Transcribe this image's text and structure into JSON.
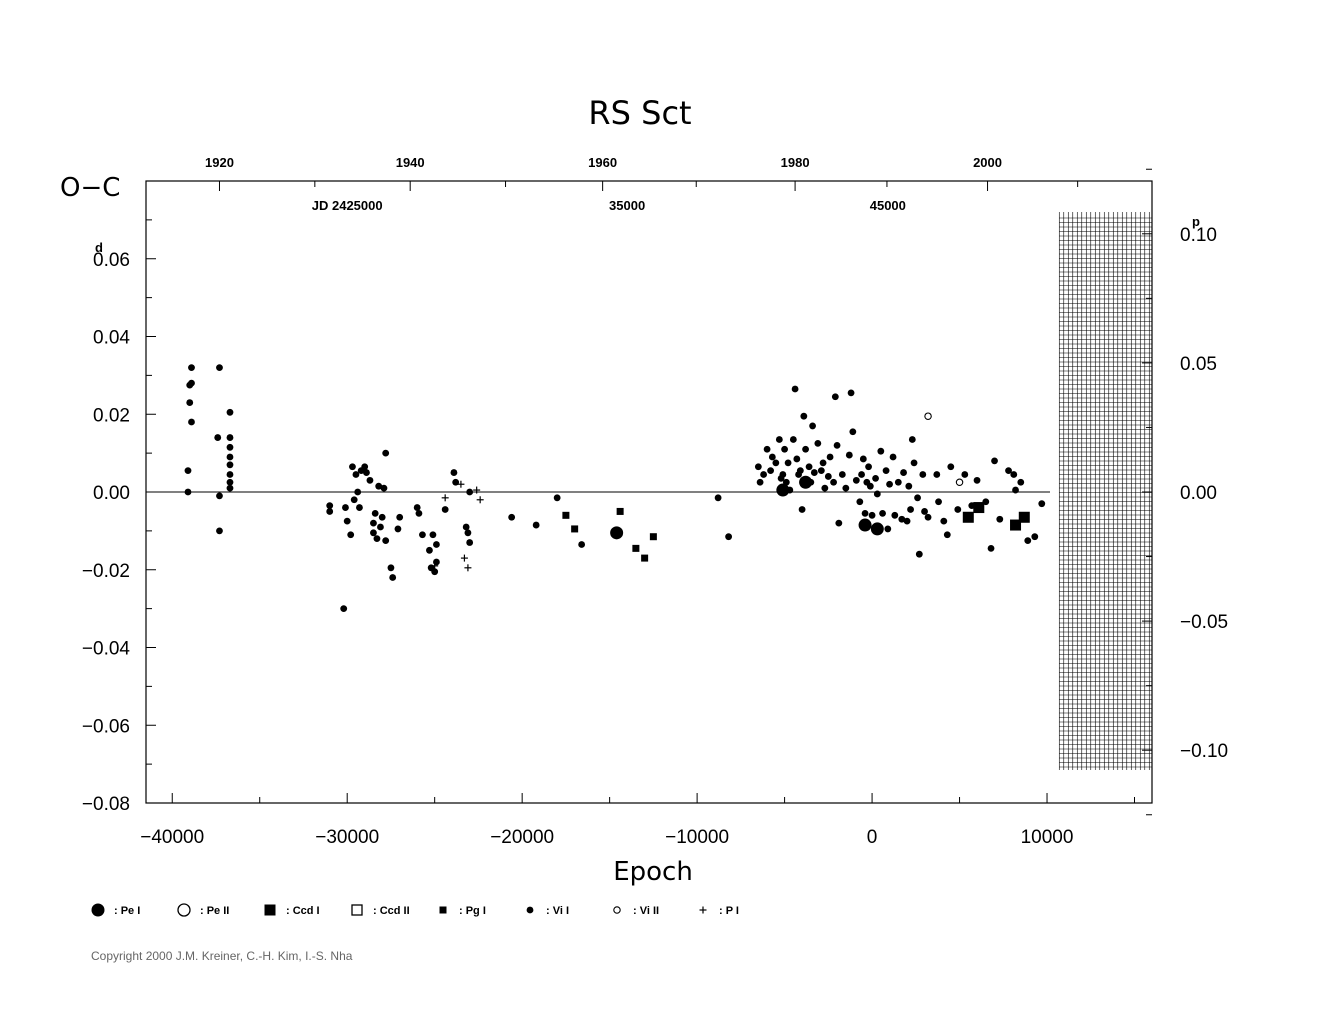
{
  "chart_data": {
    "type": "scatter",
    "title": "RS  Sct",
    "ylabel": "O−C",
    "ylabel_unit": "d",
    "xlabel": "Epoch",
    "xlim": [
      -41500,
      16000
    ],
    "ylim": [
      -0.08,
      0.08
    ],
    "x_ticks": [
      -40000,
      -30000,
      -20000,
      -10000,
      0,
      10000
    ],
    "x_tick_labels": [
      "−40000",
      "−30000",
      "−20000",
      "−10000",
      "0",
      "10000"
    ],
    "y_ticks": [
      -0.08,
      -0.06,
      -0.04,
      -0.02,
      0.0,
      0.02,
      0.04,
      0.06
    ],
    "y_tick_labels": [
      "−0.08",
      "−0.06",
      "−0.04",
      "−0.02",
      "0.00",
      "0.02",
      "0.04",
      "0.06"
    ],
    "right_axis": {
      "unit": "p",
      "ticks": [
        -0.1,
        -0.05,
        0.0,
        0.05,
        0.1
      ],
      "tick_labels": [
        "−0.10",
        "−0.05",
        "0.00",
        "0.05",
        "0.10"
      ],
      "period_days": 0.6642
    },
    "top_axis_years": {
      "ticks": [
        -37300,
        -26400,
        -15400,
        -4400,
        6600
      ],
      "labels": [
        "1920",
        "1940",
        "1960",
        "1980",
        "2000"
      ]
    },
    "top_axis_jd": {
      "labels": [
        "JD  2425000",
        "35000",
        "45000"
      ],
      "epochs": [
        -30000,
        -14000,
        900
      ]
    },
    "shaded_region_from_epoch": 10700,
    "series": [
      {
        "name": "Pe I",
        "marker": "big-dot",
        "points": [
          [
            -14600,
            -0.0105
          ],
          [
            300,
            -0.0095
          ],
          [
            -400,
            -0.0085
          ],
          [
            -3800,
            0.0025
          ],
          [
            -5100,
            0.0005
          ]
        ]
      },
      {
        "name": "Pe II",
        "marker": "big-circle",
        "points": []
      },
      {
        "name": "Ccd I",
        "marker": "big-square",
        "points": [
          [
            5500,
            -0.0065
          ],
          [
            6100,
            -0.004
          ],
          [
            8200,
            -0.0085
          ],
          [
            8700,
            -0.0065
          ]
        ]
      },
      {
        "name": "Ccd II",
        "marker": "big-open-square",
        "points": []
      },
      {
        "name": "Pg I",
        "marker": "small-square",
        "points": [
          [
            -17500,
            -0.006
          ],
          [
            -17000,
            -0.0095
          ],
          [
            -14400,
            -0.005
          ],
          [
            -13500,
            -0.0145
          ],
          [
            -13000,
            -0.017
          ],
          [
            -12500,
            -0.0115
          ]
        ]
      },
      {
        "name": "Vi I",
        "marker": "dot",
        "points": [
          [
            -39000,
            0.0275
          ],
          [
            -38900,
            0.032
          ],
          [
            -39000,
            0.023
          ],
          [
            -38900,
            0.018
          ],
          [
            -39100,
            0.0055
          ],
          [
            -39100,
            0.0
          ],
          [
            -38900,
            0.028
          ],
          [
            -37300,
            0.032
          ],
          [
            -37400,
            0.014
          ],
          [
            -37300,
            -0.001
          ],
          [
            -37300,
            -0.01
          ],
          [
            -36700,
            0.0205
          ],
          [
            -36700,
            0.014
          ],
          [
            -36700,
            0.0115
          ],
          [
            -36700,
            0.009
          ],
          [
            -36700,
            0.007
          ],
          [
            -36700,
            0.0045
          ],
          [
            -36700,
            0.0025
          ],
          [
            -36700,
            0.001
          ],
          [
            -31000,
            -0.005
          ],
          [
            -31000,
            -0.0035
          ],
          [
            -30200,
            -0.03
          ],
          [
            -30100,
            -0.004
          ],
          [
            -30000,
            -0.0075
          ],
          [
            -29800,
            -0.011
          ],
          [
            -29700,
            0.0065
          ],
          [
            -29600,
            -0.002
          ],
          [
            -29500,
            0.0045
          ],
          [
            -29400,
            0.0
          ],
          [
            -29300,
            -0.004
          ],
          [
            -29200,
            0.0055
          ],
          [
            -29000,
            0.0065
          ],
          [
            -28900,
            0.005
          ],
          [
            -28700,
            0.003
          ],
          [
            -28500,
            -0.008
          ],
          [
            -28500,
            -0.0105
          ],
          [
            -28400,
            -0.0055
          ],
          [
            -28300,
            -0.012
          ],
          [
            -28200,
            0.0015
          ],
          [
            -28100,
            -0.009
          ],
          [
            -28000,
            -0.0065
          ],
          [
            -27900,
            0.001
          ],
          [
            -27800,
            0.01
          ],
          [
            -27800,
            -0.0125
          ],
          [
            -27500,
            -0.0195
          ],
          [
            -27400,
            -0.022
          ],
          [
            -27100,
            -0.0095
          ],
          [
            -27000,
            -0.0065
          ],
          [
            -26000,
            -0.004
          ],
          [
            -25900,
            -0.0055
          ],
          [
            -25700,
            -0.011
          ],
          [
            -25300,
            -0.015
          ],
          [
            -25200,
            -0.0195
          ],
          [
            -25100,
            -0.011
          ],
          [
            -25000,
            -0.0205
          ],
          [
            -24900,
            -0.0135
          ],
          [
            -24900,
            -0.018
          ],
          [
            -24400,
            -0.0045
          ],
          [
            -23900,
            0.005
          ],
          [
            -23800,
            0.0025
          ],
          [
            -23200,
            -0.009
          ],
          [
            -23100,
            -0.0105
          ],
          [
            -23000,
            -0.013
          ],
          [
            -23000,
            0.0
          ],
          [
            -20600,
            -0.0065
          ],
          [
            -19200,
            -0.0085
          ],
          [
            -18000,
            -0.0015
          ],
          [
            -16600,
            -0.0135
          ],
          [
            -8800,
            -0.0015
          ],
          [
            -8200,
            -0.0115
          ],
          [
            -6500,
            0.0065
          ],
          [
            -6400,
            0.0025
          ],
          [
            -6200,
            0.0045
          ],
          [
            -6000,
            0.011
          ],
          [
            -5800,
            0.0055
          ],
          [
            -5700,
            0.009
          ],
          [
            -5500,
            0.0075
          ],
          [
            -5300,
            0.0135
          ],
          [
            -5200,
            0.0035
          ],
          [
            -5100,
            0.0045
          ],
          [
            -5000,
            0.011
          ],
          [
            -4900,
            0.0025
          ],
          [
            -4800,
            0.0075
          ],
          [
            -4700,
            0.0005
          ],
          [
            -4500,
            0.0135
          ],
          [
            -4400,
            0.0265
          ],
          [
            -4300,
            0.0085
          ],
          [
            -4200,
            0.0045
          ],
          [
            -4100,
            0.0055
          ],
          [
            -4000,
            -0.0045
          ],
          [
            -3900,
            0.0195
          ],
          [
            -3800,
            0.011
          ],
          [
            -3600,
            0.0065
          ],
          [
            -3500,
            0.0025
          ],
          [
            -3400,
            0.017
          ],
          [
            -3300,
            0.005
          ],
          [
            -3100,
            0.0125
          ],
          [
            -2900,
            0.0055
          ],
          [
            -2800,
            0.0075
          ],
          [
            -2700,
            0.001
          ],
          [
            -2500,
            0.004
          ],
          [
            -2400,
            0.009
          ],
          [
            -2200,
            0.0025
          ],
          [
            -2100,
            0.0245
          ],
          [
            -2000,
            0.012
          ],
          [
            -1900,
            -0.008
          ],
          [
            -1700,
            0.0045
          ],
          [
            -1500,
            0.001
          ],
          [
            -1300,
            0.0095
          ],
          [
            -1200,
            0.0255
          ],
          [
            -1100,
            0.0155
          ],
          [
            -900,
            0.003
          ],
          [
            -700,
            -0.0025
          ],
          [
            -600,
            0.0045
          ],
          [
            -500,
            0.0085
          ],
          [
            -400,
            -0.0055
          ],
          [
            -300,
            0.0025
          ],
          [
            -200,
            0.0065
          ],
          [
            -100,
            0.0015
          ],
          [
            0,
            -0.006
          ],
          [
            200,
            0.0035
          ],
          [
            300,
            -0.0005
          ],
          [
            500,
            0.0105
          ],
          [
            600,
            -0.0055
          ],
          [
            800,
            0.0055
          ],
          [
            900,
            -0.0095
          ],
          [
            1000,
            0.002
          ],
          [
            1200,
            0.009
          ],
          [
            1300,
            -0.006
          ],
          [
            1500,
            0.0025
          ],
          [
            1700,
            -0.007
          ],
          [
            1800,
            0.005
          ],
          [
            2000,
            -0.0075
          ],
          [
            2100,
            0.0015
          ],
          [
            2200,
            -0.0045
          ],
          [
            2300,
            0.0135
          ],
          [
            2400,
            0.0075
          ],
          [
            2600,
            -0.0015
          ],
          [
            2700,
            -0.016
          ],
          [
            2900,
            0.0045
          ],
          [
            3000,
            -0.005
          ],
          [
            3200,
            -0.0065
          ],
          [
            3700,
            0.0045
          ],
          [
            3800,
            -0.0025
          ],
          [
            4100,
            -0.0075
          ],
          [
            4300,
            -0.011
          ],
          [
            4500,
            0.0065
          ],
          [
            4900,
            -0.0045
          ],
          [
            5300,
            0.0045
          ],
          [
            5700,
            -0.0035
          ],
          [
            6000,
            0.003
          ],
          [
            6500,
            -0.0025
          ],
          [
            6800,
            -0.0145
          ],
          [
            7000,
            0.008
          ],
          [
            7300,
            -0.007
          ],
          [
            7800,
            0.0055
          ],
          [
            8100,
            0.0045
          ],
          [
            8200,
            0.0005
          ],
          [
            8500,
            0.0025
          ],
          [
            8900,
            -0.0125
          ],
          [
            9300,
            -0.0115
          ],
          [
            9700,
            -0.003
          ]
        ]
      },
      {
        "name": "Vi II",
        "marker": "circle",
        "points": [
          [
            3200,
            0.0195
          ],
          [
            5000,
            0.0025
          ]
        ]
      },
      {
        "name": "P I",
        "marker": "plus",
        "points": [
          [
            -24400,
            -0.0015
          ],
          [
            -23500,
            0.002
          ],
          [
            -23300,
            -0.017
          ],
          [
            -23100,
            -0.0195
          ],
          [
            -22600,
            0.0005
          ],
          [
            -22400,
            -0.002
          ],
          [
            -25000,
            -0.019
          ]
        ]
      }
    ]
  },
  "legend": [
    {
      "symbol": "big-dot",
      "label": ": Pe  I"
    },
    {
      "symbol": "big-circle",
      "label": ": Pe  II"
    },
    {
      "symbol": "big-square",
      "label": ": Ccd  I"
    },
    {
      "symbol": "big-open-square",
      "label": ": Ccd  II"
    },
    {
      "symbol": "small-square",
      "label": ": Pg  I"
    },
    {
      "symbol": "dot",
      "label": ": Vi  I"
    },
    {
      "symbol": "circle",
      "label": ": Vi  II"
    },
    {
      "symbol": "plus",
      "label": ": P  I"
    }
  ],
  "copyright": "Copyright 2000 J.M. Kreiner, C.-H. Kim, I.-S. Nha"
}
